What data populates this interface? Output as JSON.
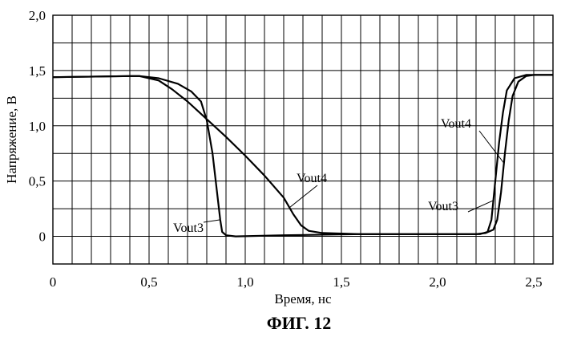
{
  "figure": {
    "caption": "ФИГ. 12"
  },
  "chart_data": {
    "type": "line",
    "xlabel": "Время, нс",
    "ylabel": "Напряжение, В",
    "xlim": [
      0,
      2.6
    ],
    "ylim": [
      -0.25,
      2.0
    ],
    "x_grid_step": 0.1,
    "y_grid_step": 0.25,
    "grid": true,
    "xticks": [
      {
        "v": 0,
        "label": "0"
      },
      {
        "v": 0.5,
        "label": "0,5"
      },
      {
        "v": 1.0,
        "label": "1,0"
      },
      {
        "v": 1.5,
        "label": "1,5"
      },
      {
        "v": 2.0,
        "label": "2,0"
      },
      {
        "v": 2.5,
        "label": "2,5"
      }
    ],
    "yticks": [
      {
        "v": 0,
        "label": "0"
      },
      {
        "v": 0.5,
        "label": "0,5"
      },
      {
        "v": 1.0,
        "label": "1,0"
      },
      {
        "v": 1.5,
        "label": "1,5"
      },
      {
        "v": 2.0,
        "label": "2,0"
      }
    ],
    "series": [
      {
        "name": "Vout3",
        "points": [
          [
            0,
            1.44
          ],
          [
            0.4,
            1.45
          ],
          [
            0.45,
            1.45
          ],
          [
            0.55,
            1.43
          ],
          [
            0.65,
            1.38
          ],
          [
            0.72,
            1.31
          ],
          [
            0.77,
            1.22
          ],
          [
            0.8,
            1.05
          ],
          [
            0.83,
            0.75
          ],
          [
            0.85,
            0.45
          ],
          [
            0.87,
            0.15
          ],
          [
            0.88,
            0.04
          ],
          [
            0.9,
            0.01
          ],
          [
            0.95,
            0.0
          ],
          [
            1.2,
            0.01
          ],
          [
            1.6,
            0.02
          ],
          [
            2.0,
            0.02
          ],
          [
            2.22,
            0.02
          ],
          [
            2.26,
            0.04
          ],
          [
            2.28,
            0.15
          ],
          [
            2.3,
            0.5
          ],
          [
            2.32,
            0.85
          ],
          [
            2.34,
            1.12
          ],
          [
            2.36,
            1.32
          ],
          [
            2.4,
            1.43
          ],
          [
            2.46,
            1.46
          ],
          [
            2.6,
            1.46
          ]
        ]
      },
      {
        "name": "Vout4",
        "points": [
          [
            0,
            1.44
          ],
          [
            0.4,
            1.45
          ],
          [
            0.45,
            1.45
          ],
          [
            0.55,
            1.41
          ],
          [
            0.62,
            1.33
          ],
          [
            0.7,
            1.22
          ],
          [
            0.8,
            1.06
          ],
          [
            0.9,
            0.9
          ],
          [
            1.0,
            0.73
          ],
          [
            1.1,
            0.55
          ],
          [
            1.2,
            0.35
          ],
          [
            1.25,
            0.2
          ],
          [
            1.29,
            0.1
          ],
          [
            1.33,
            0.05
          ],
          [
            1.4,
            0.03
          ],
          [
            1.6,
            0.02
          ],
          [
            2.0,
            0.02
          ],
          [
            2.2,
            0.02
          ],
          [
            2.25,
            0.03
          ],
          [
            2.29,
            0.06
          ],
          [
            2.31,
            0.15
          ],
          [
            2.33,
            0.4
          ],
          [
            2.35,
            0.75
          ],
          [
            2.37,
            1.05
          ],
          [
            2.39,
            1.27
          ],
          [
            2.42,
            1.4
          ],
          [
            2.46,
            1.45
          ],
          [
            2.5,
            1.46
          ],
          [
            2.6,
            1.46
          ]
        ]
      }
    ],
    "annotations": [
      {
        "text": "Vout4",
        "series": "Vout4",
        "at_x": 1.23
      },
      {
        "text": "Vout3",
        "series": "Vout3",
        "at_x": 0.87
      },
      {
        "text": "Vout4",
        "series": "Vout4",
        "at_x": 2.345
      },
      {
        "text": "Vout3",
        "series": "Vout3",
        "at_x": 2.29
      }
    ]
  }
}
